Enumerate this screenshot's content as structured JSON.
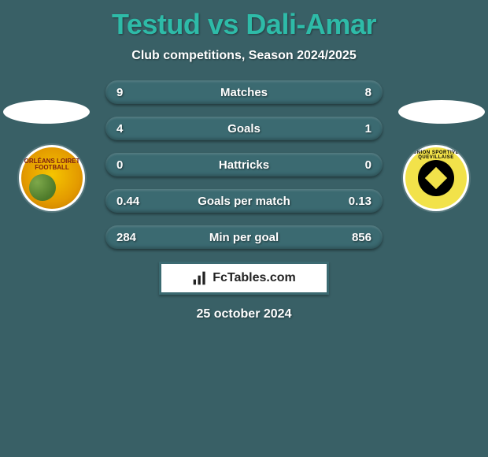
{
  "title_color": "#2ebba8",
  "background_color": "#396066",
  "row_bg_color": "#3b6a71",
  "text_color": "#ffffff",
  "player_left": "Testud",
  "player_right": "Dali-Amar",
  "vs_word": "vs",
  "subtitle": "Club competitions, Season 2024/2025",
  "badge_left_text": "ORLÉANS\nLOIRET\nFOOTBALL",
  "badge_right_text": "UNION SPORTIVE QUEVILLAISE",
  "rows": [
    {
      "label": "Matches",
      "left": "9",
      "right": "8"
    },
    {
      "label": "Goals",
      "left": "4",
      "right": "1"
    },
    {
      "label": "Hattricks",
      "left": "0",
      "right": "0"
    },
    {
      "label": "Goals per match",
      "left": "0.44",
      "right": "0.13"
    },
    {
      "label": "Min per goal",
      "left": "284",
      "right": "856"
    }
  ],
  "footer_brand": "FcTables.com",
  "date": "25 october 2024"
}
